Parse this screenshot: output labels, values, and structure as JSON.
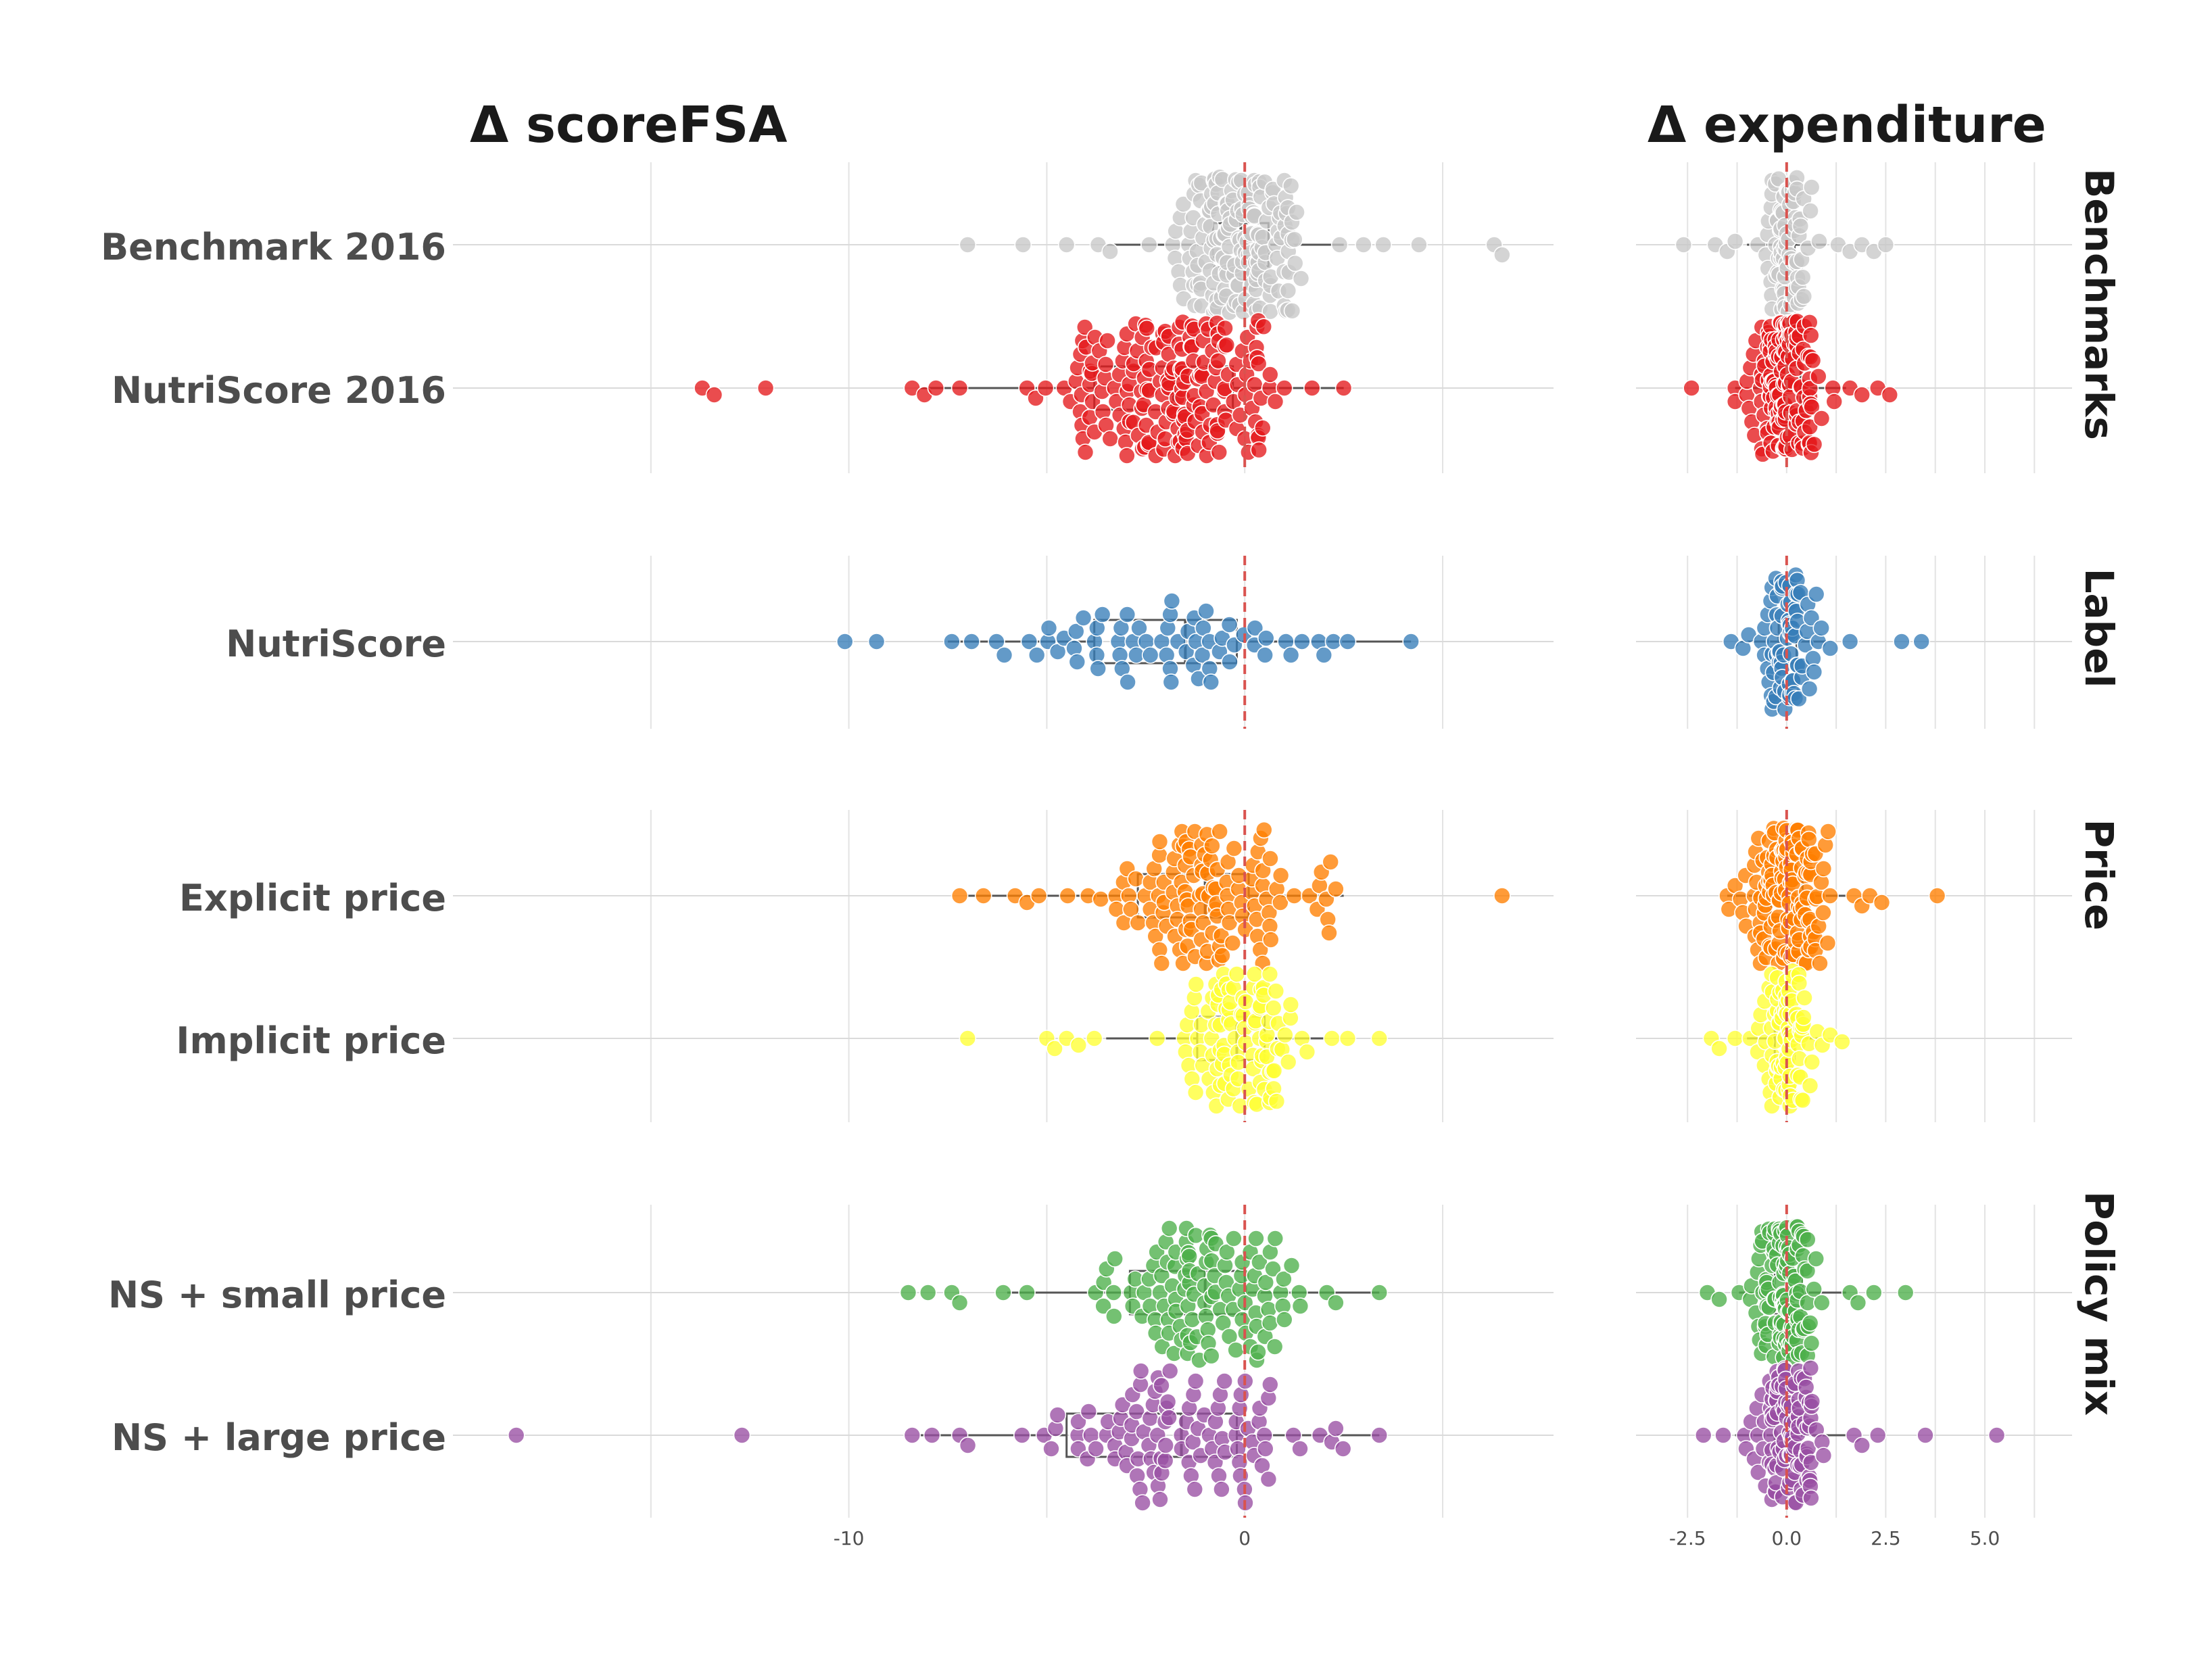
{
  "chart_data": {
    "type": "scatter",
    "subtype": "beeswarm with boxplots, faceted",
    "colors": {
      "Benchmark 2016": "#c8c8c8",
      "NutriScore 2016": "#e41a1c",
      "NutriScore": "#377eb8",
      "Explicit price": "#ff7f00",
      "Implicit price": "#ffff33",
      "NS + small price": "#4daf4a",
      "NS + large price": "#984ea3",
      "reference_line": "#d9534f"
    },
    "reference_line_at": 0,
    "panels": [
      {
        "title": "Δ scoreFSA",
        "xlim": [
          -20,
          7.8
        ],
        "gridlines": [
          -15,
          -10,
          -5,
          0,
          5
        ],
        "xticks": [
          {
            "value": -10,
            "label": "-10"
          },
          {
            "value": 0,
            "label": "0"
          }
        ]
      },
      {
        "title": "Δ expenditure",
        "xlim": [
          -3.8,
          7.2
        ],
        "gridlines": [
          -2.5,
          -1.25,
          0,
          1.25,
          2.5,
          3.75,
          5,
          6.25
        ],
        "xticks": [
          {
            "value": -2.5,
            "label": "-2.5"
          },
          {
            "value": 0,
            "label": "0.0"
          },
          {
            "value": 2.5,
            "label": "2.5"
          },
          {
            "value": 5,
            "label": "5.0"
          }
        ]
      }
    ],
    "facets": [
      {
        "label": "Benchmarks",
        "rows": [
          "Benchmark 2016",
          "NutriScore 2016"
        ]
      },
      {
        "label": "Label",
        "rows": [
          "NutriScore"
        ]
      },
      {
        "label": "Price",
        "rows": [
          "Explicit price",
          "Implicit price"
        ]
      },
      {
        "label": "Policy mix",
        "rows": [
          "NS + small price",
          "NS + large price"
        ]
      }
    ],
    "series": [
      {
        "name": "Benchmark 2016",
        "scoreFSA": {
          "n": 190,
          "q1": -0.8,
          "median": -0.1,
          "q3": 0.6,
          "whisker_low": -3.5,
          "whisker_high": 2.5,
          "sd": 0.9,
          "outliers": [
            -7.0,
            -5.6,
            -4.5,
            -3.7,
            -3.4,
            3.0,
            3.5,
            4.4,
            6.3,
            6.5
          ]
        },
        "expenditure": {
          "n": 95,
          "q1": -0.2,
          "median": 0.0,
          "q3": 0.2,
          "whisker_low": -1.0,
          "whisker_high": 1.0,
          "sd": 0.3,
          "outliers": [
            -2.6,
            -1.8,
            -1.5,
            -1.3,
            1.3,
            1.6,
            1.9,
            2.2,
            2.5
          ]
        }
      },
      {
        "name": "NutriScore 2016",
        "scoreFSA": {
          "n": 200,
          "q1": -3.8,
          "median": -1.8,
          "q3": -0.3,
          "whisker_low": -8.2,
          "whisker_high": 2.5,
          "sd": 1.5,
          "outliers": [
            -13.7,
            -13.4,
            -12.1,
            -8.4,
            -7.8,
            -7.2,
            1.0,
            1.7,
            2.5
          ]
        },
        "expenditure": {
          "n": 160,
          "q1": -0.3,
          "median": 0.0,
          "q3": 0.35,
          "whisker_low": -1.3,
          "whisker_high": 1.5,
          "sd": 0.4,
          "outliers": [
            -2.4,
            -1.3,
            -1.0,
            1.6,
            1.9,
            2.3,
            2.6
          ]
        }
      },
      {
        "name": "NutriScore",
        "scoreFSA": {
          "n": 70,
          "q1": -3.8,
          "median": -1.5,
          "q3": -0.2,
          "whisker_low": -7.5,
          "whisker_high": 4.2,
          "sd": 1.7,
          "outliers": [
            -10.1,
            -9.3,
            -7.4,
            -6.9,
            2.0,
            2.6,
            4.2
          ]
        },
        "expenditure": {
          "n": 85,
          "q1": -0.2,
          "median": 0.0,
          "q3": 0.25,
          "whisker_low": -1.2,
          "whisker_high": 1.0,
          "sd": 0.35,
          "outliers": [
            -1.4,
            -1.1,
            1.1,
            1.6,
            2.9,
            3.4
          ]
        }
      },
      {
        "name": "Explicit price",
        "scoreFSA": {
          "n": 130,
          "q1": -2.7,
          "median": -1.0,
          "q3": 0.1,
          "whisker_low": -7.0,
          "whisker_high": 2.5,
          "sd": 1.2,
          "outliers": [
            -7.2,
            -6.6,
            -5.8,
            -5.5,
            -5.2,
            2.1,
            2.3,
            6.5
          ]
        },
        "expenditure": {
          "n": 150,
          "q1": -0.4,
          "median": 0.0,
          "q3": 0.4,
          "whisker_low": -1.5,
          "whisker_high": 1.5,
          "sd": 0.5,
          "outliers": [
            -1.5,
            -1.3,
            1.7,
            1.9,
            2.1,
            2.4,
            3.8
          ]
        }
      },
      {
        "name": "Implicit price",
        "scoreFSA": {
          "n": 110,
          "q1": -1.2,
          "median": -0.2,
          "q3": 0.5,
          "whisker_low": -3.5,
          "whisker_high": 2.0,
          "sd": 0.7,
          "outliers": [
            -7.0,
            -5.0,
            -4.8,
            -4.5,
            -4.2,
            -3.8,
            2.2,
            2.6,
            3.4
          ]
        },
        "expenditure": {
          "n": 95,
          "q1": -0.3,
          "median": 0.0,
          "q3": 0.2,
          "whisker_low": -1.0,
          "whisker_high": 0.8,
          "sd": 0.35,
          "outliers": [
            -1.9,
            -1.7,
            -1.3,
            0.9,
            1.1,
            1.4
          ]
        }
      },
      {
        "name": "NS + small price",
        "scoreFSA": {
          "n": 120,
          "q1": -2.9,
          "median": -1.0,
          "q3": 0.0,
          "whisker_low": -6.0,
          "whisker_high": 3.4,
          "sd": 1.1,
          "outliers": [
            -8.5,
            -8.0,
            -7.4,
            -7.2,
            -6.1,
            -5.5,
            2.3,
            3.4
          ]
        },
        "expenditure": {
          "n": 130,
          "q1": -0.3,
          "median": 0.0,
          "q3": 0.4,
          "whisker_low": -1.2,
          "whisker_high": 1.5,
          "sd": 0.4,
          "outliers": [
            -2.0,
            -1.7,
            -1.2,
            1.6,
            1.8,
            2.2,
            3.0
          ]
        }
      },
      {
        "name": "NS + large price",
        "scoreFSA": {
          "n": 110,
          "q1": -4.5,
          "median": -1.6,
          "q3": -0.2,
          "whisker_low": -8.2,
          "whisker_high": 3.4,
          "sd": 1.9,
          "outliers": [
            -18.4,
            -12.7,
            -8.4,
            -7.9,
            -7.2,
            1.9,
            2.2,
            3.4
          ]
        },
        "expenditure": {
          "n": 120,
          "q1": -0.3,
          "median": 0.0,
          "q3": 0.35,
          "whisker_low": -1.3,
          "whisker_high": 1.5,
          "sd": 0.45,
          "outliers": [
            -2.1,
            -1.6,
            1.7,
            1.9,
            2.3,
            3.5,
            5.3
          ]
        }
      }
    ]
  }
}
